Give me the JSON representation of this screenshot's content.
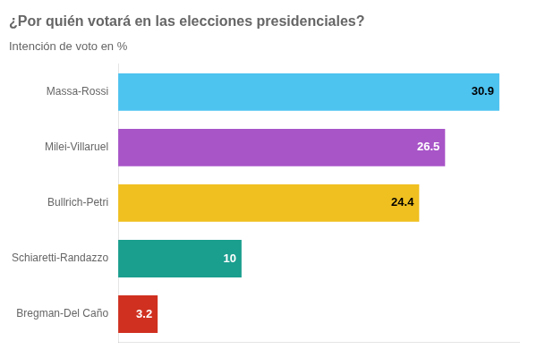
{
  "chart_data": {
    "type": "bar",
    "orientation": "horizontal",
    "title": "¿Por quién votará en las elecciones presidenciales?",
    "subtitle": "Intención de voto en %",
    "categories": [
      "Massa-Rossi",
      "Milei-Villaruel",
      "Bullrich-Petri",
      "Schiaretti-Randazzo",
      "Bregman-Del Caño"
    ],
    "values": [
      30.9,
      26.5,
      24.4,
      10.0,
      3.2
    ],
    "colors": [
      "#4DC3F0",
      "#A855C8",
      "#F0C020",
      "#1A9E8E",
      "#D03020"
    ],
    "xlim": [
      0,
      32.5
    ],
    "grid": false,
    "legend": false,
    "data_labels": true,
    "tick_labels": "y"
  }
}
